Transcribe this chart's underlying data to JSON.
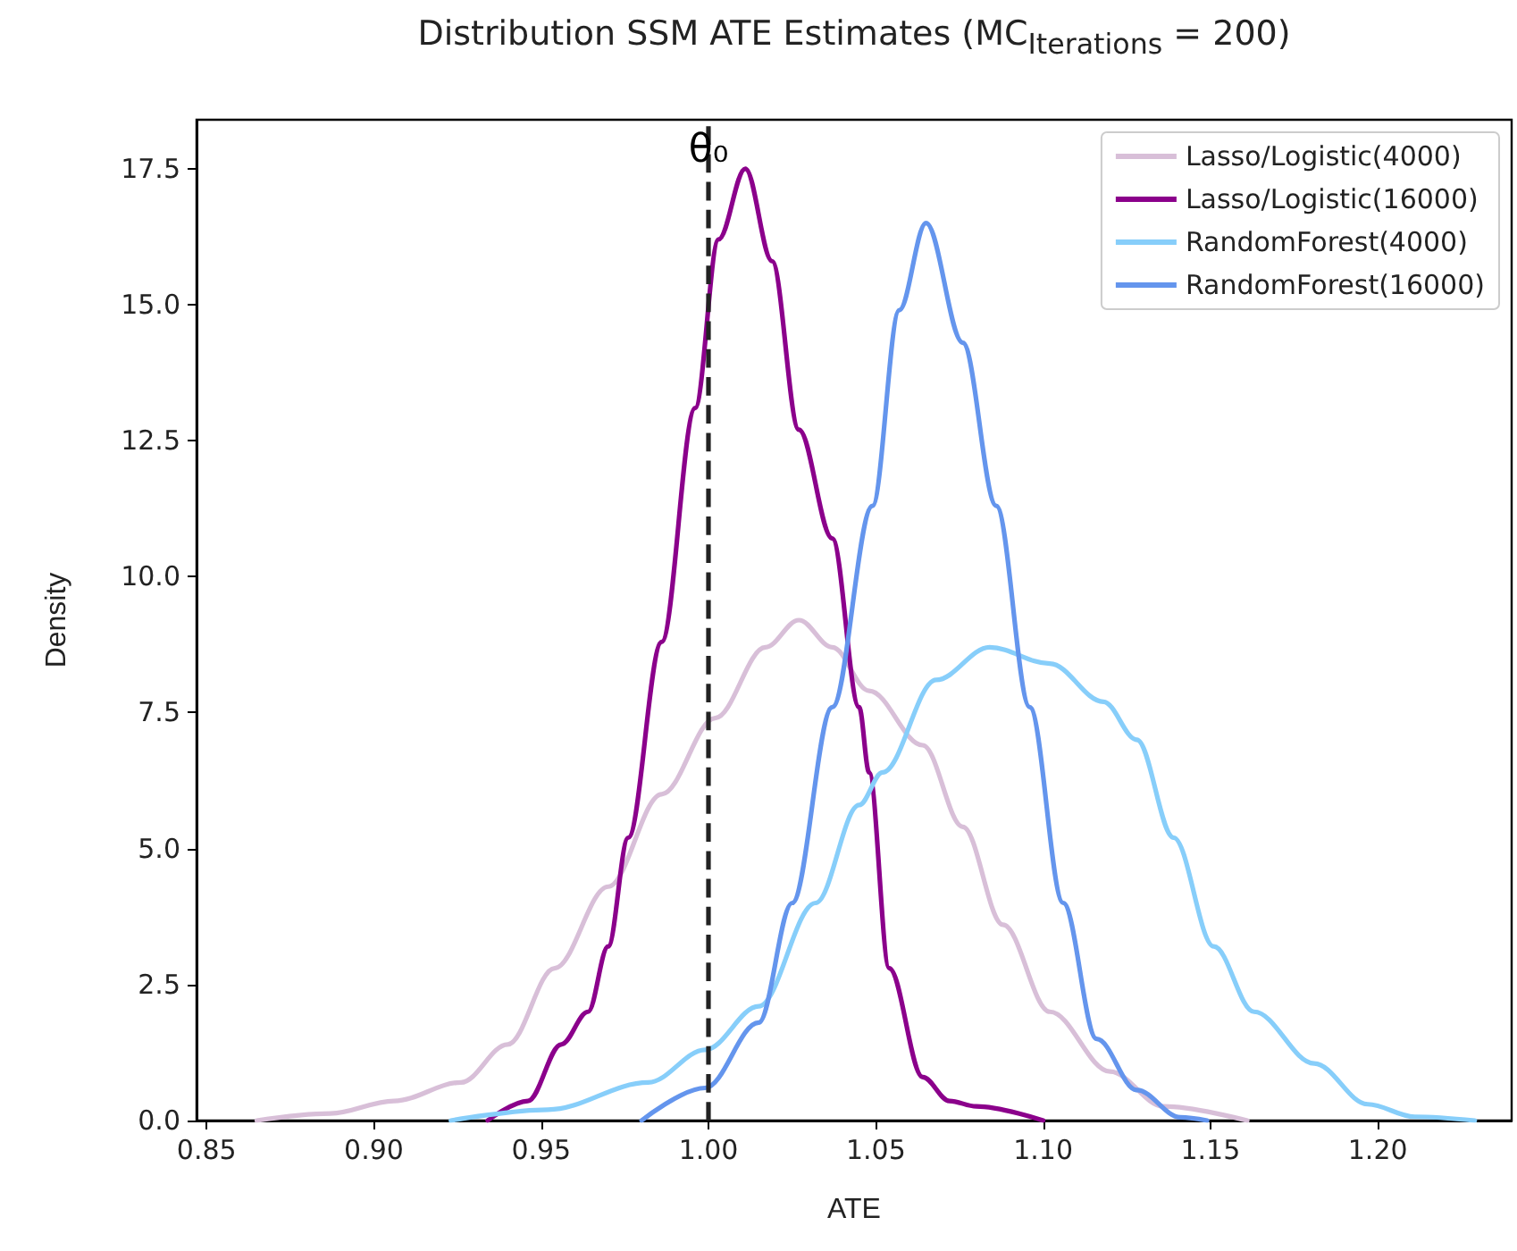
{
  "chart_data": {
    "type": "line",
    "title": "Distribution SSM ATE Estimates (MC$_{Iterations}$ = 200)",
    "xlabel": "ATE",
    "ylabel": "Density",
    "xlim": [
      0.847,
      1.24
    ],
    "ylim": [
      0,
      18.4
    ],
    "xticks": [
      0.85,
      {
        "value": 0.9,
        "label": "0.90"
      },
      0.95,
      {
        "value": 1,
        "label": "1.00"
      },
      1.05,
      {
        "value": 1.1,
        "label": "1.10"
      },
      1.15,
      {
        "value": 1.2,
        "label": "1.20"
      }
    ],
    "yticks": [
      {
        "value": 0,
        "label": "0.0"
      },
      2.5,
      {
        "value": 5,
        "label": "5.0"
      },
      7.5,
      {
        "value": 10,
        "label": "10.0"
      },
      12.5,
      {
        "value": 15,
        "label": "15.0"
      },
      17.5
    ],
    "grid": false,
    "legend": "top right",
    "marker": "none",
    "line_style": "solid",
    "ref_lines": [
      {
        "axis": "x",
        "value": 1,
        "label": "θ₀",
        "color": "#222222",
        "line_style": "dashed"
      }
    ],
    "series": [
      {
        "name": "Lasso/Logistic(4000)",
        "color": "#d8bfd8",
        "x": [
          0.865,
          0.887,
          0.906,
          0.926,
          0.94,
          0.954,
          0.97,
          0.986,
          1.002,
          1.017,
          1.027,
          1.037,
          1.048,
          1.064,
          1.076,
          1.088,
          1.102,
          1.12,
          1.136,
          1.161
        ],
        "values": [
          0,
          0.13,
          0.36,
          0.7,
          1.4,
          2.8,
          4.3,
          6.0,
          7.4,
          8.7,
          9.2,
          8.7,
          7.9,
          6.9,
          5.4,
          3.6,
          2.0,
          0.9,
          0.26,
          0
        ]
      },
      {
        "name": "Lasso/Logistic(16000)",
        "color": "#8b008b",
        "x": [
          0.934,
          0.946,
          0.956,
          0.964,
          0.97,
          0.976,
          0.986,
          0.996,
          1.003,
          1.011,
          1.019,
          1.027,
          1.037,
          1.045,
          1.048,
          1.054,
          1.064,
          1.072,
          1.08,
          1.1
        ],
        "values": [
          0,
          0.36,
          1.4,
          2.0,
          3.2,
          5.2,
          8.8,
          13.1,
          16.2,
          17.5,
          15.8,
          12.7,
          10.7,
          7.6,
          6.4,
          2.8,
          0.8,
          0.36,
          0.26,
          0
        ]
      },
      {
        "name": "RandomForest(4000)",
        "color": "#87cefa",
        "x": [
          0.923,
          0.952,
          0.982,
          0.999,
          1.015,
          1.032,
          1.045,
          1.052,
          1.068,
          1.084,
          1.102,
          1.118,
          1.128,
          1.139,
          1.151,
          1.163,
          1.181,
          1.197,
          1.211,
          1.229
        ],
        "values": [
          0,
          0.2,
          0.7,
          1.3,
          2.1,
          4.0,
          5.8,
          6.4,
          8.1,
          8.7,
          8.4,
          7.7,
          7.0,
          5.2,
          3.2,
          2.0,
          1.05,
          0.3,
          0.07,
          0
        ]
      },
      {
        "name": "RandomForest(16000)",
        "color": "#6495ed",
        "x": [
          0.98,
          0.999,
          1.015,
          1.025,
          1.037,
          1.049,
          1.057,
          1.065,
          1.076,
          1.086,
          1.096,
          1.106,
          1.116,
          1.128,
          1.141,
          1.149
        ],
        "values": [
          0,
          0.6,
          1.8,
          4.0,
          7.6,
          11.3,
          14.9,
          16.5,
          14.3,
          11.3,
          7.6,
          4.0,
          1.5,
          0.56,
          0.06,
          0
        ]
      }
    ]
  }
}
